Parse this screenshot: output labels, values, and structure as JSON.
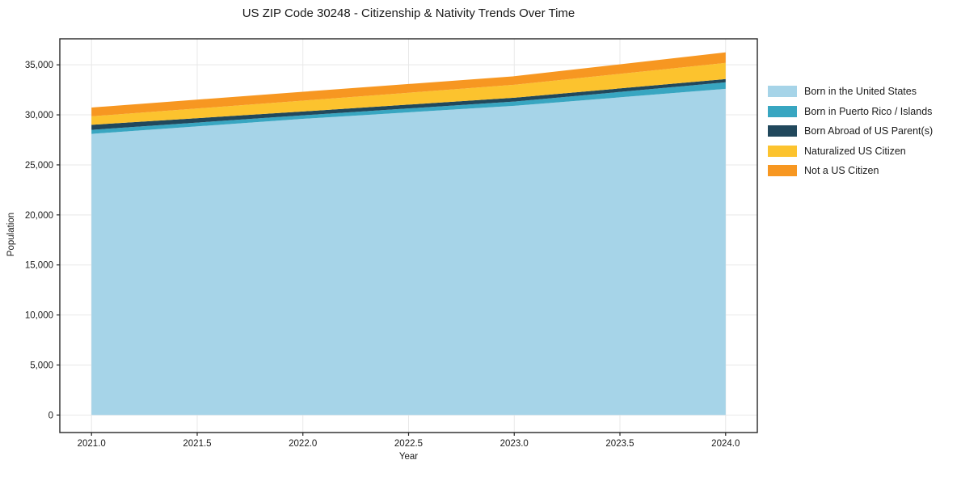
{
  "chart_data": {
    "type": "area",
    "stacked": true,
    "title": "US ZIP Code 30248 - Citizenship & Nativity Trends Over Time",
    "xlabel": "Year",
    "ylabel": "Population",
    "x": [
      2021,
      2022,
      2023,
      2024
    ],
    "series": [
      {
        "name": "Born in the United States",
        "color": "#a6d4e8",
        "values": [
          28100,
          29600,
          30900,
          32600
        ]
      },
      {
        "name": "Born in Puerto Rico / Islands",
        "color": "#38a6c1",
        "values": [
          400,
          360,
          430,
          650
        ]
      },
      {
        "name": "Born Abroad of US Parent(s)",
        "color": "#21485c",
        "values": [
          500,
          380,
          380,
          330
        ]
      },
      {
        "name": "Naturalized US Citizen",
        "color": "#fcc32e",
        "values": [
          850,
          1080,
          1290,
          1610
        ]
      },
      {
        "name": "Not a US Citizen",
        "color": "#f79721",
        "values": [
          880,
          890,
          860,
          1050
        ]
      }
    ],
    "xticks": [
      2021.0,
      2021.5,
      2022.0,
      2022.5,
      2023.0,
      2023.5,
      2024.0
    ],
    "xtick_labels": [
      "2021.0",
      "2021.5",
      "2022.0",
      "2022.5",
      "2023.0",
      "2023.5",
      "2024.0"
    ],
    "yticks": [
      0,
      5000,
      10000,
      15000,
      20000,
      25000,
      30000,
      35000
    ],
    "ytick_labels": [
      "0",
      "5,000",
      "10,000",
      "15,000",
      "20,000",
      "25,000",
      "30,000",
      "35,000"
    ],
    "xlim": [
      2020.85,
      2024.15
    ],
    "ylim": [
      -1750,
      37600
    ],
    "grid": true,
    "legend_position": "right"
  },
  "colors": {
    "background": "#ffffff",
    "grid": "#e8e8e8",
    "axis": "#262626",
    "text": "#1a1a1a"
  }
}
